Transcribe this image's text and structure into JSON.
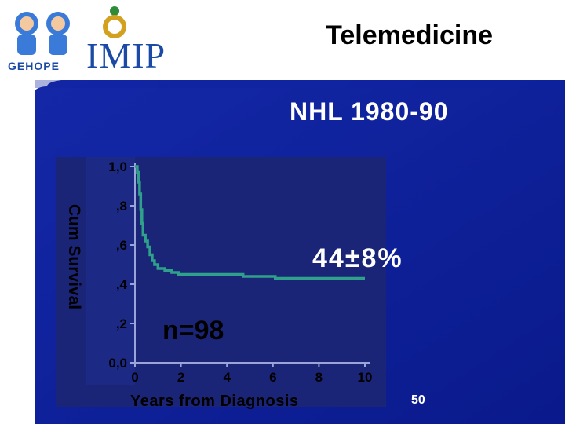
{
  "slide": {
    "title": "Telemedicine",
    "subtitle": "NHL   1980-90",
    "page_number": "50",
    "annotation_pct": "44±8%",
    "annotation_n": "n=98"
  },
  "logos": {
    "left": "GEHOPE",
    "right": "IMIP"
  },
  "colors": {
    "background_blue": "#0a1c92",
    "curve": "#2fa08a",
    "plot_panel": "#1b2578"
  },
  "chart_data": {
    "type": "line",
    "step": true,
    "title": "NHL   1980-90",
    "xlabel": "Years from Diagnosis",
    "ylabel": "Cum Survival",
    "xlim": [
      0,
      10
    ],
    "ylim": [
      0.0,
      1.0
    ],
    "x_ticks": [
      "0",
      "2",
      "4",
      "6",
      "8",
      "10"
    ],
    "y_ticks": [
      "0,0",
      ",2",
      ",4",
      ",6",
      ",8",
      "1,0"
    ],
    "x_tick_values": [
      0,
      2,
      4,
      6,
      8,
      10
    ],
    "y_tick_values": [
      0.0,
      0.2,
      0.4,
      0.6,
      0.8,
      1.0
    ],
    "series": [
      {
        "points": [
          [
            0.0,
            1.0
          ],
          [
            0.1,
            0.97
          ],
          [
            0.15,
            0.92
          ],
          [
            0.2,
            0.86
          ],
          [
            0.25,
            0.78
          ],
          [
            0.3,
            0.71
          ],
          [
            0.35,
            0.65
          ],
          [
            0.45,
            0.62
          ],
          [
            0.55,
            0.59
          ],
          [
            0.65,
            0.55
          ],
          [
            0.75,
            0.52
          ],
          [
            0.85,
            0.5
          ],
          [
            1.0,
            0.48
          ],
          [
            1.3,
            0.47
          ],
          [
            1.6,
            0.46
          ],
          [
            1.9,
            0.45
          ],
          [
            2.2,
            0.45
          ],
          [
            4.6,
            0.45
          ],
          [
            4.7,
            0.44
          ],
          [
            6.0,
            0.44
          ],
          [
            6.1,
            0.43
          ],
          [
            10.0,
            0.43
          ]
        ]
      }
    ]
  }
}
